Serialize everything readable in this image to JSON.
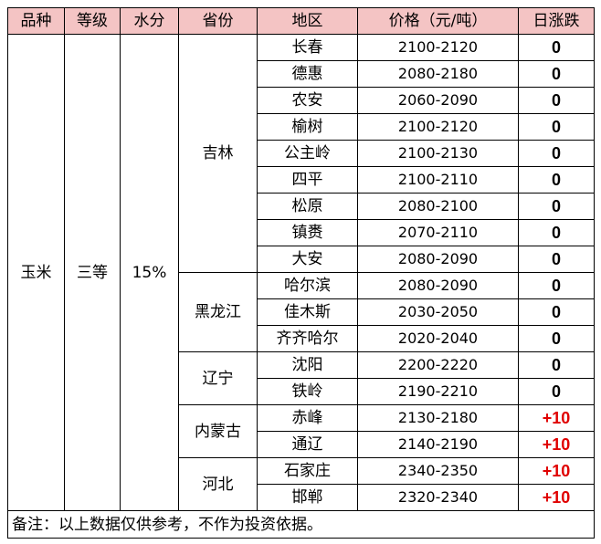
{
  "table": {
    "headers": [
      "品种",
      "等级",
      "水分",
      "省份",
      "地区",
      "价格（元/吨）",
      "日涨跌"
    ],
    "variety": "玉米",
    "grade": "三等",
    "moisture": "15%",
    "provinces": [
      {
        "name": "吉林",
        "rows": [
          {
            "region": "长春",
            "price": "2100-2120",
            "change": "0"
          },
          {
            "region": "德惠",
            "price": "2080-2180",
            "change": "0"
          },
          {
            "region": "农安",
            "price": "2060-2090",
            "change": "0"
          },
          {
            "region": "榆树",
            "price": "2100-2120",
            "change": "0"
          },
          {
            "region": "公主岭",
            "price": "2100-2130",
            "change": "0"
          },
          {
            "region": "四平",
            "price": "2100-2110",
            "change": "0"
          },
          {
            "region": "松原",
            "price": "2080-2100",
            "change": "0"
          },
          {
            "region": "镇赉",
            "price": "2070-2110",
            "change": "0"
          },
          {
            "region": "大安",
            "price": "2080-2090",
            "change": "0"
          }
        ]
      },
      {
        "name": "黑龙江",
        "rows": [
          {
            "region": "哈尔滨",
            "price": "2080-2090",
            "change": "0"
          },
          {
            "region": "佳木斯",
            "price": "2030-2050",
            "change": "0"
          },
          {
            "region": "齐齐哈尔",
            "price": "2020-2040",
            "change": "0"
          }
        ]
      },
      {
        "name": "辽宁",
        "rows": [
          {
            "region": "沈阳",
            "price": "2200-2220",
            "change": "0"
          },
          {
            "region": "铁岭",
            "price": "2190-2210",
            "change": "0"
          }
        ]
      },
      {
        "name": "内蒙古",
        "rows": [
          {
            "region": "赤峰",
            "price": "2130-2180",
            "change": "+10"
          },
          {
            "region": "通辽",
            "price": "2140-2190",
            "change": "+10"
          }
        ]
      },
      {
        "name": "河北",
        "rows": [
          {
            "region": "石家庄",
            "price": "2340-2350",
            "change": "+10"
          },
          {
            "region": "邯郸",
            "price": "2320-2340",
            "change": "+10"
          }
        ]
      }
    ],
    "note": "备注：以上数据仅供参考，不作为投资依据。"
  },
  "colors": {
    "header_bg": "#f4c4c4",
    "up_color": "#e00000",
    "border": "#000000"
  }
}
